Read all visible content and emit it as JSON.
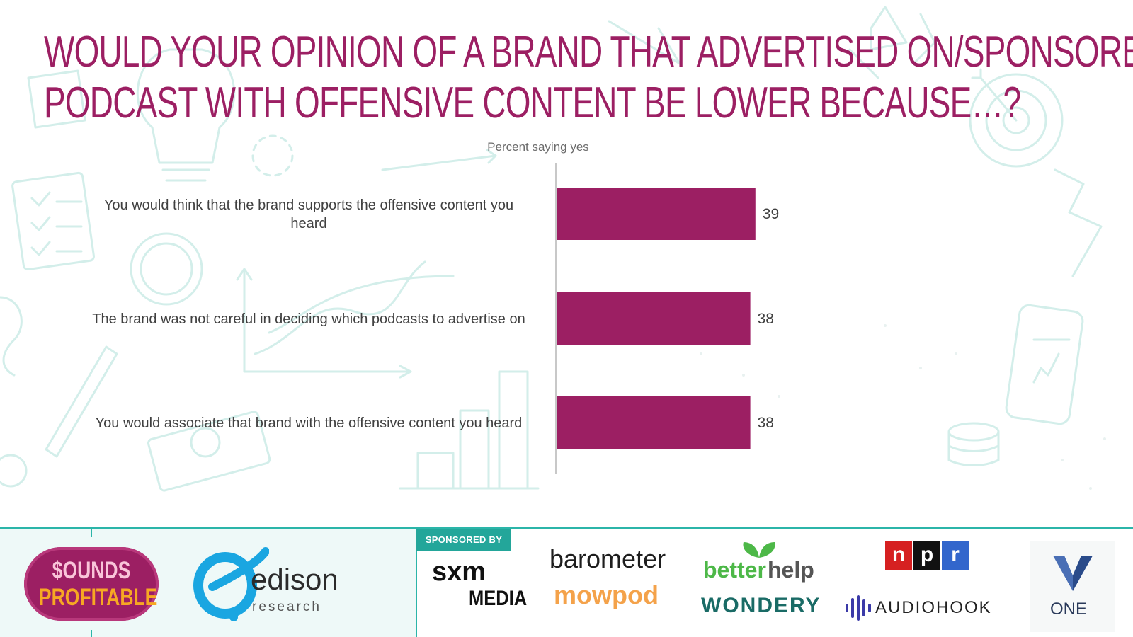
{
  "slide": {
    "title_lines": [
      "Would your opinion of a brand that advertised on/sponsored a",
      "podcast with offensive content be lower because…?"
    ]
  },
  "chart_data": {
    "type": "bar",
    "orientation": "horizontal",
    "xlabel": "Percent saying yes",
    "categories": [
      "You would think that the brand supports the offensive content you heard",
      "The brand was not careful in deciding which podcasts to advertise on",
      "You would associate that brand with the offensive content you heard"
    ],
    "category_lines": [
      [
        "You would think that the brand supports the offensive content you",
        "heard"
      ],
      [
        "The brand was not careful in deciding which podcasts to advertise on"
      ],
      [
        "You would associate that brand with the offensive content you heard"
      ]
    ],
    "values": [
      39,
      38,
      38
    ],
    "xlim": [
      0,
      100
    ],
    "data_labels": true,
    "bar_color": "#9c1f63",
    "grid": false
  },
  "footer": {
    "sounds_profitable": [
      "$OUNDS",
      "PROFITABLE"
    ],
    "edison": {
      "name": "edison",
      "sub": "research"
    },
    "sponsored_by": "SPONSORED BY",
    "sponsors": {
      "sxm": [
        "sxm",
        "MEDIA"
      ],
      "barometer": "barometer",
      "mowpod": "mowpod",
      "betterhelp": [
        "better",
        "help"
      ],
      "wondery": "WONDERY",
      "npr": [
        "n",
        "p",
        "r"
      ],
      "audiohook": "AUDIOHOOK",
      "one": "ONE"
    }
  },
  "colors": {
    "accent": "#9c1f63",
    "teal": "#2bb5a9",
    "text": "#404040"
  }
}
